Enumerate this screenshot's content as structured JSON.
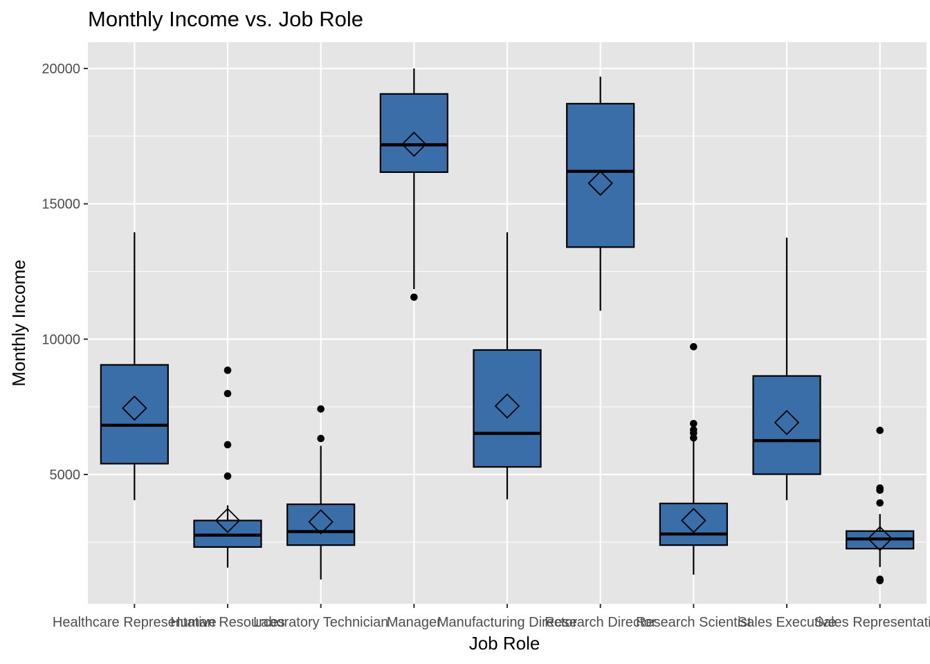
{
  "chart_data": {
    "type": "boxplot",
    "title": "Monthly Income vs. Job Role",
    "xlabel": "Job Role",
    "ylabel": "Monthly Income",
    "ylim": [
      0,
      21000
    ],
    "yticks": [
      5000,
      10000,
      15000,
      20000
    ],
    "grid": true,
    "colors": {
      "panel_bg": "#e5e5e5",
      "grid": "#ffffff",
      "box_fill": "#3a6ea8",
      "box_stroke": "#000000",
      "outlier": "#000000",
      "tick_text": "#4d4d4d"
    },
    "categories": [
      "Healthcare Representative",
      "Human Resources",
      "Laboratory Technician",
      "Manager",
      "Manufacturing Director",
      "Research Director",
      "Research Scientist",
      "Sales Executive",
      "Sales Representative"
    ],
    "boxes": [
      {
        "category": "Healthcare Representative",
        "whisker_low": 4050,
        "q1": 5400,
        "median": 6820,
        "q3": 9050,
        "whisker_high": 13950,
        "mean": 7450,
        "outliers": []
      },
      {
        "category": "Human Resources",
        "whisker_low": 1560,
        "q1": 2320,
        "median": 2760,
        "q3": 3300,
        "whisker_high": 3860,
        "mean": 3300,
        "outliers": [
          4940,
          6100,
          7990,
          8850
        ]
      },
      {
        "category": "Laboratory Technician",
        "whisker_low": 1120,
        "q1": 2390,
        "median": 2890,
        "q3": 3900,
        "whisker_high": 6060,
        "mean": 3250,
        "outliers": [
          6330,
          7420
        ]
      },
      {
        "category": "Manager",
        "whisker_low": 11850,
        "q1": 16170,
        "median": 17180,
        "q3": 19060,
        "whisker_high": 20000,
        "mean": 17200,
        "outliers": [
          11550
        ]
      },
      {
        "category": "Manufacturing Director",
        "whisker_low": 4080,
        "q1": 5280,
        "median": 6520,
        "q3": 9600,
        "whisker_high": 13950,
        "mean": 7530,
        "outliers": []
      },
      {
        "category": "Research Director",
        "whisker_low": 11050,
        "q1": 13400,
        "median": 16200,
        "q3": 18700,
        "whisker_high": 19700,
        "mean": 15760,
        "outliers": []
      },
      {
        "category": "Research Scientist",
        "whisker_low": 1300,
        "q1": 2390,
        "median": 2800,
        "q3": 3930,
        "whisker_high": 6250,
        "mean": 3300,
        "outliers": [
          6350,
          6530,
          6650,
          6880,
          9720
        ]
      },
      {
        "category": "Sales Executive",
        "whisker_low": 4050,
        "q1": 5010,
        "median": 6250,
        "q3": 8640,
        "whisker_high": 13750,
        "mean": 6920,
        "outliers": []
      },
      {
        "category": "Sales Representative",
        "whisker_low": 1580,
        "q1": 2260,
        "median": 2620,
        "q3": 2910,
        "whisker_high": 3540,
        "mean": 2630,
        "outliers": [
          1080,
          1130,
          3950,
          4420,
          4500,
          6630
        ]
      }
    ]
  }
}
